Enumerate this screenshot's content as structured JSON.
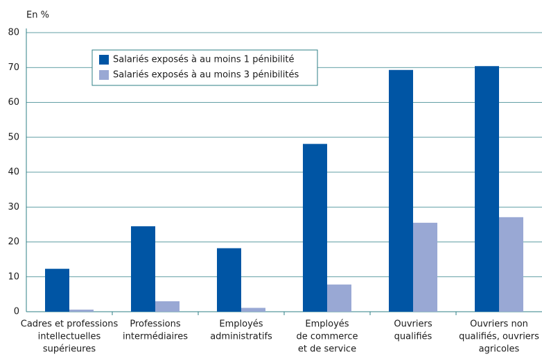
{
  "chart_data": {
    "type": "bar",
    "y_label": "En %",
    "categories": [
      [
        "Cadres et professions",
        "intellectuelles",
        "supérieures"
      ],
      [
        "Professions",
        "intermédiaires"
      ],
      [
        "Employés",
        "administratifs"
      ],
      [
        "Employés",
        "de commerce",
        "et de service"
      ],
      [
        "Ouvriers",
        "qualifiés"
      ],
      [
        "Ouvriers non",
        "qualifiés, ouvriers",
        "agricoles"
      ]
    ],
    "series": [
      {
        "name": "Salariés exposés à au moins 1 pénibilité",
        "color": "#0055a4",
        "values": [
          12.3,
          24.5,
          18.2,
          48.1,
          69.3,
          70.4
        ]
      },
      {
        "name": "Salariés exposés à au moins 3 pénibilités",
        "color": "#99a8d4",
        "values": [
          0.6,
          3.0,
          1.1,
          7.8,
          25.5,
          27.1
        ]
      }
    ],
    "ylim": [
      0,
      80
    ],
    "yticks": [
      0,
      10,
      20,
      30,
      40,
      50,
      60,
      70,
      80
    ],
    "grid": true,
    "legend": "top-left"
  }
}
